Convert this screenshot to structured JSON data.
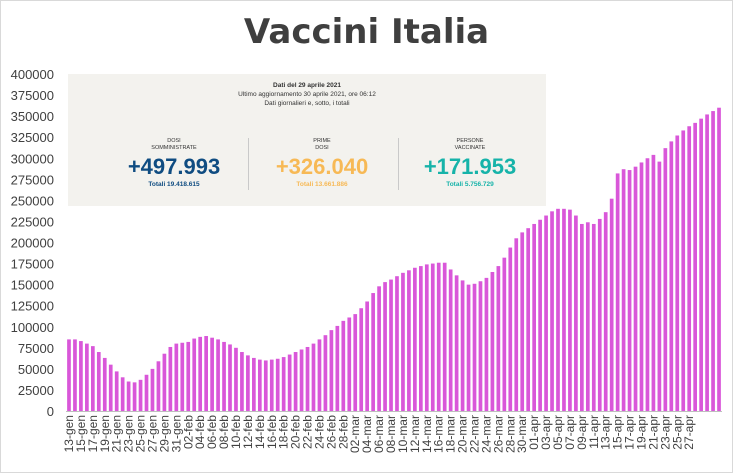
{
  "title": "Vaccini Italia",
  "infobox": {
    "date_line": "Dati del 29 aprile 2021",
    "update_line": "Ultimo aggiornamento 30 aprile 2021, ore 06:12",
    "note_line": "Dati giornalieri e, sotto, i totali",
    "blocks": [
      {
        "label1": "DOSI",
        "label2": "SOMMINISTRATE",
        "value": "+497.993",
        "total": "Totali 19.418.615",
        "color": "#0f4c81"
      },
      {
        "label1": "PRIME",
        "label2": "DOSI",
        "value": "+326.040",
        "total": "Totali 13.661.886",
        "color": "#f7b955"
      },
      {
        "label1": "PERSONE",
        "label2": "VACCINATE",
        "value": "+171.953",
        "total": "Totali 5.756.729",
        "color": "#16b3a9"
      }
    ]
  },
  "chart_data": {
    "type": "bar",
    "bar_color": "#d957d9",
    "ylim": [
      0,
      400000
    ],
    "yticks": [
      0,
      25000,
      50000,
      75000,
      100000,
      125000,
      150000,
      175000,
      200000,
      225000,
      250000,
      275000,
      300000,
      325000,
      350000,
      375000,
      400000
    ],
    "x_tick_labels": [
      "13-gen",
      "15-gen",
      "17-gen",
      "19-gen",
      "21-gen",
      "23-gen",
      "25-gen",
      "27-gen",
      "29-gen",
      "31-gen",
      "02-feb",
      "04-feb",
      "06-feb",
      "08-feb",
      "10-feb",
      "12-feb",
      "14-feb",
      "16-feb",
      "18-feb",
      "20-feb",
      "22-feb",
      "24-feb",
      "26-feb",
      "28-feb",
      "02-mar",
      "04-mar",
      "06-mar",
      "08-mar",
      "10-mar",
      "12-mar",
      "14-mar",
      "16-mar",
      "18-mar",
      "20-mar",
      "22-mar",
      "24-mar",
      "26-mar",
      "28-mar",
      "30-mar",
      "01-apr",
      "03-apr",
      "05-apr",
      "07-apr",
      "09-apr",
      "11-apr",
      "13-apr",
      "15-apr",
      "17-apr",
      "19-apr",
      "21-apr",
      "23-apr",
      "25-apr",
      "27-apr"
    ],
    "values": [
      85000,
      85000,
      83000,
      80000,
      77000,
      70000,
      63000,
      55000,
      47000,
      40000,
      35000,
      34000,
      37000,
      43000,
      50000,
      59000,
      68000,
      76000,
      80000,
      81000,
      82000,
      86000,
      88000,
      89000,
      87000,
      85000,
      82000,
      79000,
      75000,
      70000,
      66000,
      63000,
      61000,
      60000,
      61000,
      62000,
      64000,
      67000,
      70000,
      73000,
      76000,
      80000,
      85000,
      90000,
      96000,
      101000,
      107000,
      111000,
      115000,
      122000,
      130000,
      140000,
      148000,
      153000,
      156000,
      160000,
      164000,
      167000,
      170000,
      172000,
      174000,
      175000,
      176000,
      176000,
      168000,
      161000,
      155000,
      150000,
      151000,
      154000,
      158000,
      165000,
      172000,
      182000,
      194000,
      205000,
      212000,
      217000,
      222000,
      227000,
      232000,
      237000,
      240000,
      240000,
      239000,
      232000,
      222000,
      224000,
      222000,
      228000,
      236000,
      252000,
      282000,
      287000,
      286000,
      290000,
      295000,
      300000,
      304000,
      296000,
      312000,
      320000,
      327000,
      333000,
      338000,
      342000,
      347000,
      352000,
      356000,
      360000
    ]
  }
}
